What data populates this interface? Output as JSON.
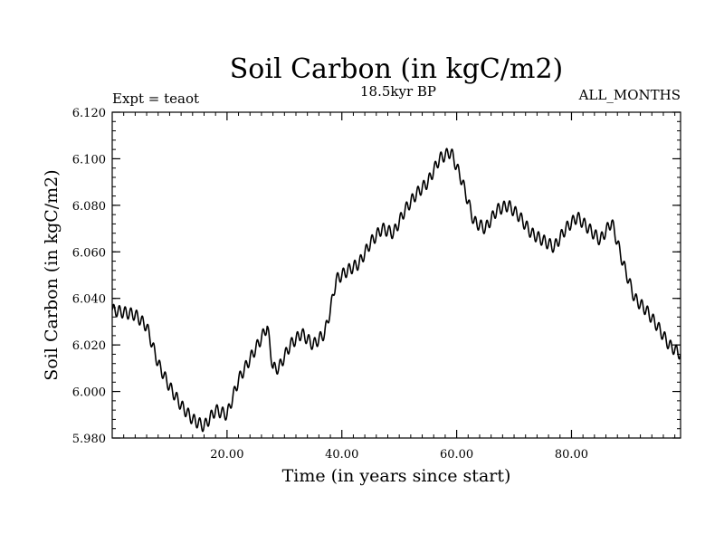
{
  "chart_data": {
    "type": "line",
    "title": "Soil Carbon (in kgC/m2)",
    "subtitle_left": "Expt = teaot",
    "subtitle_center": "18.5kyr BP",
    "subtitle_right": "ALL_MONTHS",
    "xlabel": "Time (in years since start)",
    "ylabel": "Soil Carbon (in kgC/m2)",
    "xlim": [
      0,
      99
    ],
    "ylim": [
      5.98,
      6.12
    ],
    "x_ticks": [
      20,
      40,
      60,
      80
    ],
    "x_tick_labels": [
      "20.00",
      "40.00",
      "60.00",
      "80.00"
    ],
    "y_ticks": [
      5.98,
      6.0,
      6.02,
      6.04,
      6.06,
      6.08,
      6.1,
      6.12
    ],
    "y_tick_labels": [
      "5.980",
      "6.000",
      "6.020",
      "6.040",
      "6.060",
      "6.080",
      "6.100",
      "6.120"
    ],
    "series": [
      {
        "name": "Soil Carbon",
        "color": "#000000",
        "x": [
          0,
          2,
          4,
          6,
          8,
          10,
          12,
          14,
          16,
          18,
          20,
          22,
          24,
          26,
          27,
          28,
          29,
          31,
          33,
          35,
          37,
          38,
          39,
          41,
          43,
          45,
          47,
          49,
          51,
          53,
          55,
          57,
          59,
          61,
          63,
          65,
          67,
          69,
          71,
          73,
          75,
          77,
          79,
          81,
          83,
          85,
          87,
          89,
          91,
          93,
          95,
          97,
          99
        ],
        "values": [
          6.035,
          6.034,
          6.033,
          6.028,
          6.012,
          6.002,
          5.994,
          5.988,
          5.985,
          5.992,
          5.99,
          6.005,
          6.014,
          6.023,
          6.028,
          6.01,
          6.01,
          6.02,
          6.025,
          6.02,
          6.025,
          6.035,
          6.048,
          6.052,
          6.055,
          6.064,
          6.07,
          6.068,
          6.078,
          6.085,
          6.09,
          6.1,
          6.103,
          6.09,
          6.073,
          6.07,
          6.078,
          6.08,
          6.075,
          6.068,
          6.065,
          6.062,
          6.07,
          6.075,
          6.07,
          6.065,
          6.073,
          6.055,
          6.04,
          6.035,
          6.028,
          6.02,
          6.016
        ]
      }
    ]
  }
}
